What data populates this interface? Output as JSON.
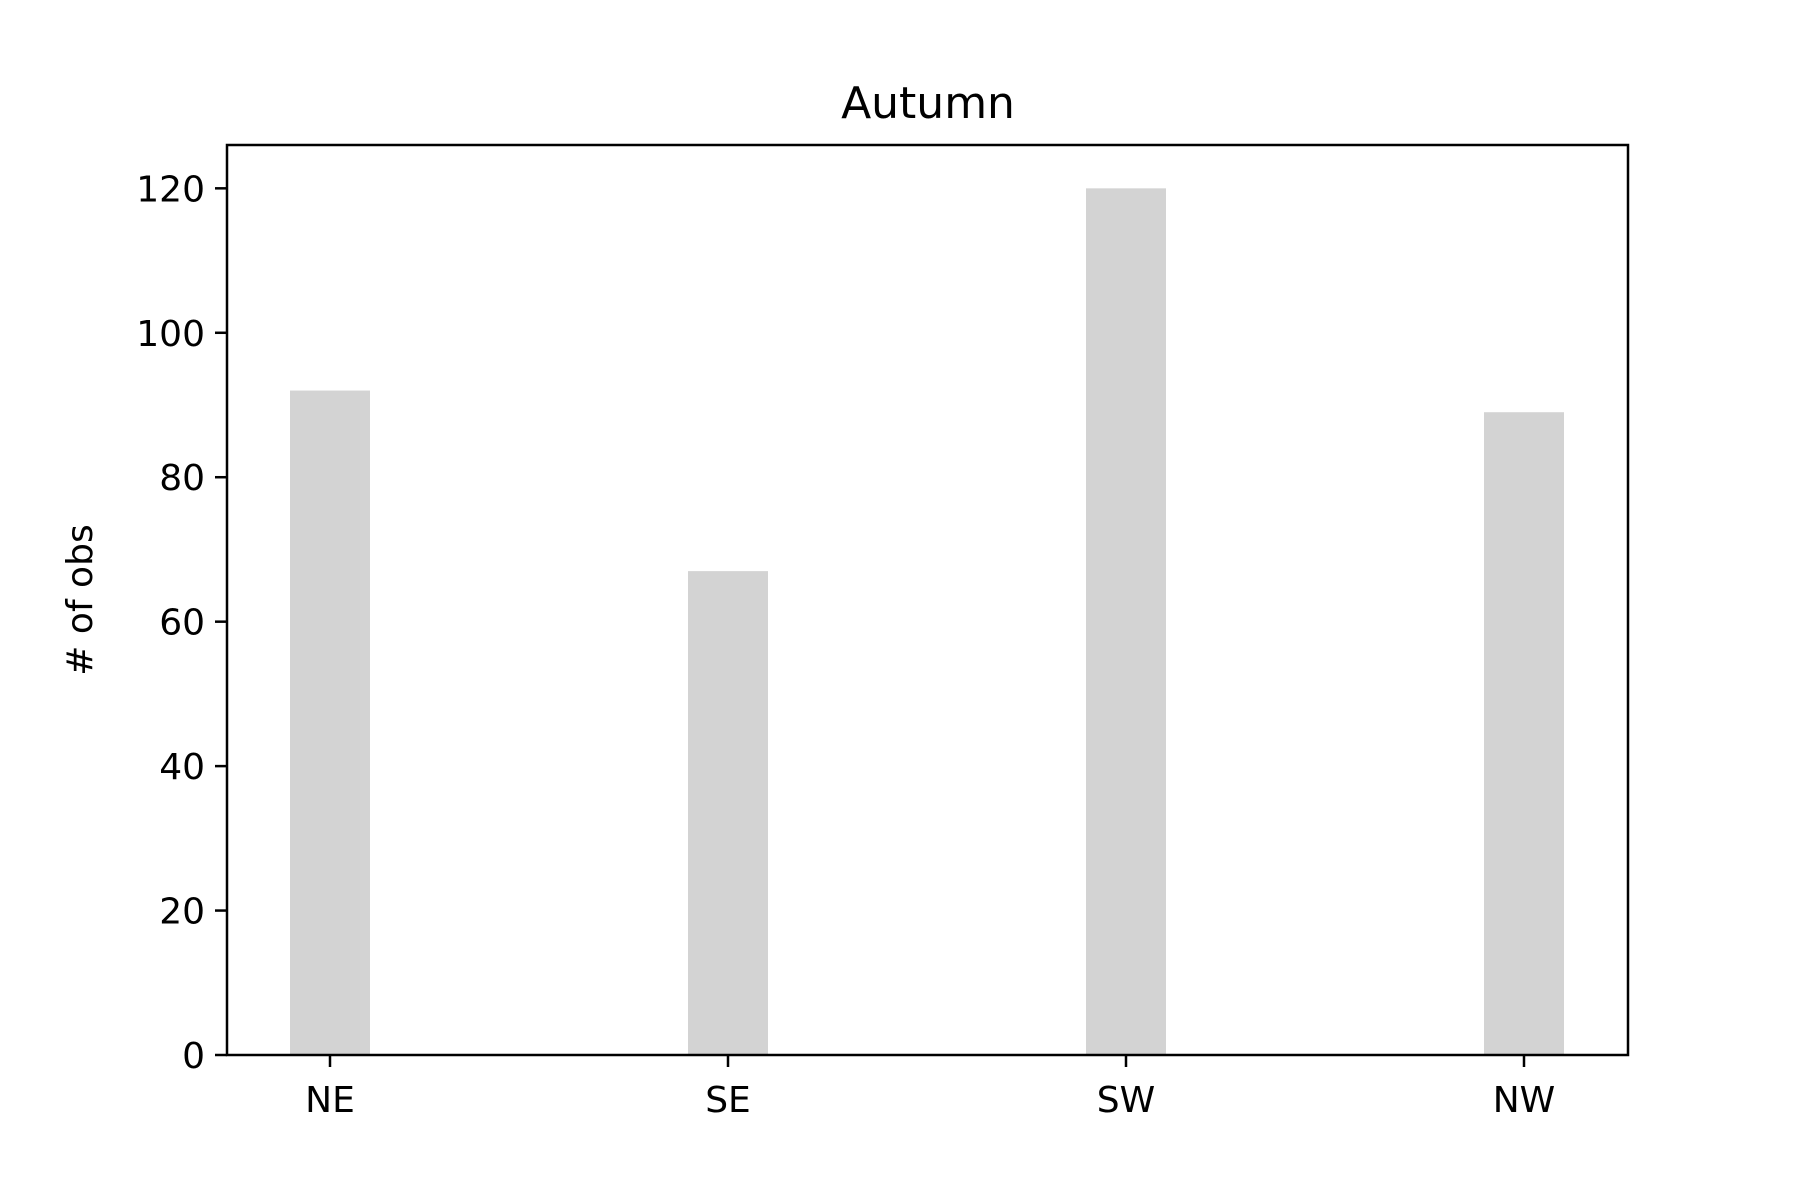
{
  "chart_data": {
    "type": "bar",
    "title": "Autumn",
    "xlabel": "",
    "ylabel": "# of obs",
    "categories": [
      "NE",
      "SE",
      "SW",
      "NW"
    ],
    "values": [
      92,
      67,
      120,
      89
    ],
    "ylim": [
      0,
      126
    ],
    "yticks": [
      "0",
      "20",
      "40",
      "60",
      "80",
      "100",
      "120"
    ],
    "grid": false,
    "legend": "none",
    "bar_color": "#d3d3d3",
    "axis_color": "#000000"
  }
}
